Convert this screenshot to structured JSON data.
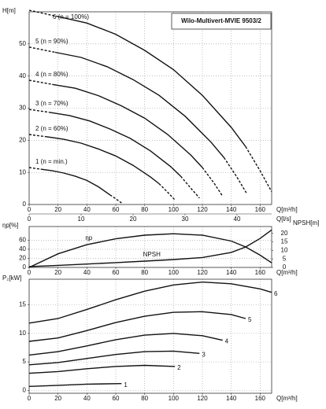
{
  "chart_data": [
    {
      "type": "line",
      "title": "Wilo-Multivert-MVIE 9503/2",
      "ylabel": "H[m]",
      "xlabel": "Q[m³/h]",
      "x2label": "Q[l/s]",
      "xlim": [
        0,
        168
      ],
      "xticks": [
        0,
        20,
        40,
        60,
        80,
        100,
        120,
        140,
        160
      ],
      "x2lim": [
        0,
        46.67
      ],
      "x2ticks": [
        0,
        10,
        20,
        30,
        40
      ],
      "ylim": [
        0,
        60
      ],
      "yticks": [
        0,
        10,
        20,
        30,
        40,
        50
      ],
      "grid": true,
      "series": [
        {
          "name": "6 (n = 100%)",
          "color": "#111111",
          "solid_x": [
            20,
            150
          ],
          "x": [
            0,
            20,
            40,
            60,
            80,
            100,
            120,
            140,
            150,
            160,
            168
          ],
          "values": [
            60.5,
            58.5,
            56.5,
            53,
            48,
            42,
            34,
            24,
            18,
            10.5,
            4
          ]
        },
        {
          "name": "5 (n = 90%)",
          "color": "#111111",
          "solid_x": [
            18,
            135
          ],
          "x": [
            0,
            18,
            36,
            54,
            72,
            90,
            108,
            126,
            135,
            144,
            151
          ],
          "values": [
            49,
            47.4,
            45.8,
            42.9,
            38.9,
            34,
            27.5,
            19.4,
            14.6,
            8.5,
            3.2
          ]
        },
        {
          "name": "4 (n = 80%)",
          "color": "#111111",
          "solid_x": [
            16,
            120
          ],
          "x": [
            0,
            16,
            32,
            48,
            64,
            80,
            96,
            112,
            120,
            128,
            134
          ],
          "values": [
            38.7,
            37.4,
            36.2,
            33.9,
            30.7,
            26.9,
            21.8,
            15.4,
            11.5,
            6.7,
            2.6
          ]
        },
        {
          "name": "3 (n = 70%)",
          "color": "#111111",
          "solid_x": [
            14,
            105
          ],
          "x": [
            0,
            14,
            28,
            42,
            56,
            70,
            84,
            98,
            105,
            112,
            118
          ],
          "values": [
            29.6,
            28.7,
            27.7,
            26,
            23.5,
            20.6,
            16.7,
            11.8,
            8.8,
            5.1,
            2
          ]
        },
        {
          "name": "2 (n = 60%)",
          "color": "#111111",
          "solid_x": [
            12,
            90
          ],
          "x": [
            0,
            12,
            24,
            36,
            48,
            60,
            72,
            84,
            90,
            96,
            101
          ],
          "values": [
            21.8,
            21.1,
            20.3,
            19.1,
            17.3,
            15.1,
            12.2,
            8.6,
            6.5,
            3.8,
            1.4
          ]
        },
        {
          "name": "1 (n = min.)",
          "color": "#111111",
          "solid_x": [
            8,
            56
          ],
          "x": [
            0,
            8,
            16,
            24,
            32,
            40,
            48,
            56,
            60,
            64
          ],
          "values": [
            11.5,
            11,
            10.5,
            9.8,
            8.8,
            7.5,
            5.5,
            3,
            1.8,
            0.5
          ]
        }
      ]
    },
    {
      "type": "line",
      "ylabel": "ηp[%]",
      "y2label": "NPSH[m]",
      "xlabel": "Q[m³/h]",
      "xlim": [
        0,
        168
      ],
      "xticks": [
        0,
        20,
        40,
        60,
        80,
        100,
        120,
        140,
        160
      ],
      "ylim": [
        0,
        90
      ],
      "yticks": [
        0,
        20,
        40,
        60
      ],
      "y2lim": [
        0,
        24
      ],
      "y2ticks": [
        0,
        5,
        10,
        15,
        20
      ],
      "grid": true,
      "series": [
        {
          "name": "ηp",
          "color": "#111111",
          "x": [
            0,
            20,
            40,
            60,
            80,
            100,
            120,
            140,
            150,
            160,
            168
          ],
          "values": [
            0,
            30,
            50,
            63,
            71,
            74,
            71,
            58,
            45,
            27,
            10
          ]
        },
        {
          "name": "NPSH",
          "color": "#111111",
          "axis": "y2",
          "x": [
            0,
            20,
            40,
            60,
            80,
            100,
            120,
            140,
            150,
            160,
            168
          ],
          "values": [
            0.5,
            1.2,
            2,
            2.8,
            3.7,
            4.6,
            5.8,
            8.8,
            12,
            17,
            22
          ]
        }
      ]
    },
    {
      "type": "line",
      "ylabel": "P₂[kW]",
      "xlabel": "Q[m³/h]",
      "xlim": [
        0,
        168
      ],
      "xticks": [
        0,
        20,
        40,
        60,
        80,
        100,
        120,
        140,
        160
      ],
      "ylim": [
        -0.5,
        19.5
      ],
      "yticks": [
        0,
        5,
        10,
        15
      ],
      "grid": true,
      "series": [
        {
          "name": "6",
          "color": "#111111",
          "x": [
            0,
            20,
            40,
            60,
            80,
            100,
            120,
            140,
            160,
            168
          ],
          "values": [
            11.8,
            12.6,
            14.2,
            15.9,
            17.4,
            18.5,
            19,
            18.7,
            17.8,
            17.2
          ]
        },
        {
          "name": "5",
          "color": "#111111",
          "x": [
            0,
            20,
            40,
            60,
            80,
            100,
            120,
            140,
            150
          ],
          "values": [
            8.6,
            9.2,
            10.5,
            11.9,
            13,
            13.7,
            13.8,
            13.3,
            12.6
          ]
        },
        {
          "name": "4",
          "color": "#111111",
          "x": [
            0,
            20,
            40,
            60,
            80,
            100,
            120,
            134
          ],
          "values": [
            6.2,
            6.8,
            7.8,
            8.9,
            9.7,
            10,
            9.6,
            8.8
          ]
        },
        {
          "name": "3",
          "color": "#111111",
          "x": [
            0,
            20,
            40,
            60,
            80,
            100,
            118
          ],
          "values": [
            4.5,
            4.9,
            5.6,
            6.3,
            6.8,
            6.9,
            6.5
          ]
        },
        {
          "name": "2",
          "color": "#111111",
          "x": [
            0,
            20,
            40,
            60,
            80,
            101
          ],
          "values": [
            3,
            3.3,
            3.8,
            4.2,
            4.4,
            4.2
          ]
        },
        {
          "name": "1",
          "color": "#111111",
          "x": [
            0,
            20,
            40,
            64
          ],
          "values": [
            0.7,
            0.9,
            1.1,
            1.2
          ]
        }
      ]
    }
  ]
}
